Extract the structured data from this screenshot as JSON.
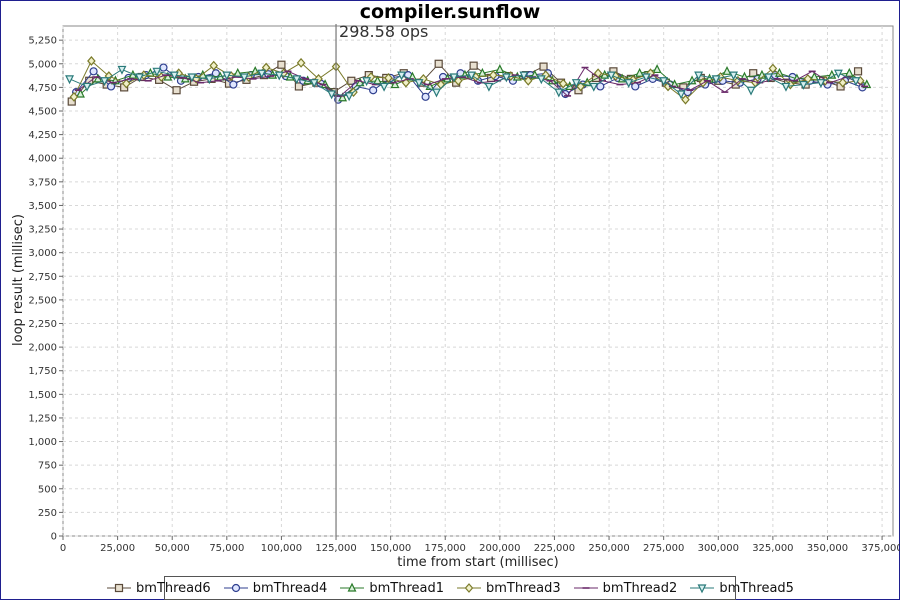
{
  "chart_data": {
    "type": "line",
    "title": "compiler.sunflow",
    "xlabel": "time from start (millisec)",
    "ylabel": "loop result (millisec)",
    "xlim": [
      0,
      380000
    ],
    "ylim": [
      0,
      5400
    ],
    "x_ticks": [
      0,
      25000,
      50000,
      75000,
      100000,
      125000,
      150000,
      175000,
      200000,
      225000,
      250000,
      275000,
      300000,
      325000,
      350000,
      375000
    ],
    "x_tick_labels": [
      "0",
      "25,000",
      "50,000",
      "75,000",
      "100,000",
      "125,000",
      "150,000",
      "175,000",
      "200,000",
      "225,000",
      "250,000",
      "275,000",
      "300,000",
      "325,000",
      "350,000",
      "375,000"
    ],
    "y_ticks": [
      0,
      250,
      500,
      750,
      1000,
      1250,
      1500,
      1750,
      2000,
      2250,
      2500,
      2750,
      3000,
      3250,
      3500,
      3750,
      4000,
      4250,
      4500,
      4750,
      5000,
      5250
    ],
    "y_tick_labels": [
      "0",
      "250",
      "500",
      "750",
      "1,000",
      "1,250",
      "1,500",
      "1,750",
      "2,000",
      "2,250",
      "2,500",
      "2,750",
      "3,000",
      "3,250",
      "3,500",
      "3,750",
      "4,000",
      "4,250",
      "4,500",
      "4,750",
      "5,000",
      "5,250"
    ],
    "grid": true,
    "legend_position": "bottom",
    "annotation": {
      "x": 125000,
      "label": "298.58 ops"
    },
    "series": [
      {
        "name": "bmThread6",
        "marker": "square",
        "color": "#5a4a3a",
        "fill": "#e8e0d0",
        "x": [
          4000,
          12000,
          20000,
          28000,
          36000,
          44000,
          52000,
          60000,
          68000,
          76000,
          84000,
          92000,
          100000,
          108000,
          116000,
          124000,
          132000,
          140000,
          148000,
          156000,
          164000,
          172000,
          180000,
          188000,
          196000,
          204000,
          212000,
          220000,
          228000,
          236000,
          244000,
          252000,
          260000,
          268000,
          276000,
          284000,
          292000,
          300000,
          308000,
          316000,
          324000,
          332000,
          340000,
          348000,
          356000,
          364000
        ],
        "y": [
          4600,
          4820,
          4780,
          4750,
          4860,
          4830,
          4720,
          4810,
          4840,
          4790,
          4830,
          4880,
          4990,
          4760,
          4800,
          4700,
          4820,
          4880,
          4850,
          4900,
          4800,
          5000,
          4800,
          4980,
          4850,
          4870,
          4880,
          4970,
          4800,
          4720,
          4850,
          4920,
          4840,
          4880,
          4800,
          4750,
          4850,
          4820,
          4780,
          4900,
          4850,
          4800,
          4780,
          4820,
          4760,
          4920
        ]
      },
      {
        "name": "bmThread4",
        "marker": "circle",
        "color": "#2f3f8f",
        "fill": "#dfe6ff",
        "x": [
          6000,
          14000,
          22000,
          30000,
          38000,
          46000,
          54000,
          62000,
          70000,
          78000,
          86000,
          94000,
          102000,
          110000,
          118000,
          126000,
          134000,
          142000,
          150000,
          158000,
          166000,
          174000,
          182000,
          190000,
          198000,
          206000,
          214000,
          222000,
          230000,
          238000,
          246000,
          254000,
          262000,
          270000,
          278000,
          286000,
          294000,
          302000,
          310000,
          318000,
          326000,
          334000,
          342000,
          350000,
          358000,
          366000
        ],
        "y": [
          4700,
          4920,
          4760,
          4850,
          4880,
          4960,
          4820,
          4860,
          4900,
          4780,
          4880,
          4890,
          4870,
          4820,
          4790,
          4620,
          4760,
          4720,
          4850,
          4880,
          4650,
          4860,
          4900,
          4820,
          4870,
          4820,
          4880,
          4900,
          4680,
          4780,
          4760,
          4850,
          4760,
          4840,
          4780,
          4700,
          4780,
          4820,
          4800,
          4840,
          4880,
          4860,
          4820,
          4780,
          4820,
          4750
        ]
      },
      {
        "name": "bmThread1",
        "marker": "triangle-up",
        "color": "#2a7a2a",
        "fill": "#d8f0d8",
        "x": [
          8000,
          16000,
          24000,
          32000,
          40000,
          48000,
          56000,
          64000,
          72000,
          80000,
          88000,
          96000,
          104000,
          112000,
          120000,
          128000,
          136000,
          144000,
          152000,
          160000,
          168000,
          176000,
          184000,
          192000,
          200000,
          208000,
          216000,
          224000,
          232000,
          240000,
          248000,
          256000,
          264000,
          272000,
          280000,
          288000,
          296000,
          304000,
          312000,
          320000,
          328000,
          336000,
          344000,
          352000,
          360000,
          368000
        ],
        "y": [
          4680,
          4840,
          4820,
          4880,
          4900,
          4860,
          4840,
          4880,
          4860,
          4900,
          4920,
          4880,
          4860,
          4820,
          4780,
          4640,
          4800,
          4820,
          4780,
          4860,
          4760,
          4840,
          4880,
          4900,
          4940,
          4860,
          4880,
          4820,
          4760,
          4800,
          4880,
          4840,
          4900,
          4940,
          4780,
          4820,
          4840,
          4920,
          4860,
          4880,
          4900,
          4840,
          4860,
          4880,
          4900,
          4780
        ]
      },
      {
        "name": "bmThread3",
        "marker": "diamond",
        "color": "#7a7a2a",
        "fill": "#f0f0c8",
        "x": [
          5000,
          13000,
          21000,
          29000,
          37000,
          45000,
          53000,
          61000,
          69000,
          77000,
          85000,
          93000,
          101000,
          109000,
          117000,
          125000,
          133000,
          141000,
          149000,
          157000,
          165000,
          173000,
          181000,
          189000,
          197000,
          205000,
          213000,
          221000,
          229000,
          237000,
          245000,
          253000,
          261000,
          269000,
          277000,
          285000,
          293000,
          301000,
          309000,
          317000,
          325000,
          333000,
          341000,
          349000,
          357000,
          365000
        ],
        "y": [
          4650,
          5030,
          4870,
          4790,
          4880,
          4860,
          4900,
          4840,
          4980,
          4870,
          4860,
          4960,
          4900,
          5010,
          4840,
          4970,
          4700,
          4860,
          4850,
          4800,
          4840,
          4780,
          4820,
          4860,
          4880,
          4870,
          4820,
          4880,
          4790,
          4760,
          4900,
          4870,
          4830,
          4900,
          4760,
          4620,
          4800,
          4860,
          4820,
          4800,
          4950,
          4780,
          4840,
          4820,
          4800,
          4820
        ]
      },
      {
        "name": "bmThread2",
        "marker": "square-line",
        "color": "#6a2a6a",
        "fill": "#f0dcf0",
        "x": [
          7000,
          15000,
          23000,
          31000,
          39000,
          47000,
          55000,
          63000,
          71000,
          79000,
          87000,
          95000,
          103000,
          111000,
          119000,
          127000,
          135000,
          143000,
          151000,
          159000,
          167000,
          175000,
          183000,
          191000,
          199000,
          207000,
          215000,
          223000,
          231000,
          239000,
          247000,
          255000,
          263000,
          271000,
          279000,
          287000,
          295000,
          303000,
          311000,
          319000,
          327000,
          335000,
          343000,
          351000,
          359000,
          367000
        ],
        "y": [
          4720,
          4860,
          4800,
          4840,
          4820,
          4880,
          4850,
          4800,
          4820,
          4860,
          4840,
          4870,
          4920,
          4840,
          4780,
          4660,
          4820,
          4780,
          4800,
          4840,
          4780,
          4840,
          4860,
          4800,
          4820,
          4880,
          4860,
          4820,
          4660,
          4960,
          4820,
          4780,
          4800,
          4880,
          4760,
          4720,
          4820,
          4700,
          4840,
          4800,
          4840,
          4820,
          4920,
          4800,
          4860,
          4760
        ]
      },
      {
        "name": "bmThread5",
        "marker": "triangle-down",
        "color": "#2a7a7a",
        "fill": "#d8f0f0",
        "x": [
          3000,
          11000,
          19000,
          27000,
          35000,
          43000,
          51000,
          59000,
          67000,
          75000,
          83000,
          91000,
          99000,
          107000,
          115000,
          123000,
          131000,
          139000,
          147000,
          155000,
          163000,
          171000,
          179000,
          187000,
          195000,
          203000,
          211000,
          219000,
          227000,
          235000,
          243000,
          251000,
          259000,
          267000,
          275000,
          283000,
          291000,
          299000,
          307000,
          315000,
          323000,
          331000,
          339000,
          347000,
          355000,
          363000
        ],
        "y": [
          4840,
          4760,
          4820,
          4940,
          4860,
          4920,
          4880,
          4860,
          4840,
          4880,
          4860,
          4900,
          4880,
          4840,
          4800,
          4680,
          4660,
          4820,
          4760,
          4880,
          4800,
          4700,
          4860,
          4880,
          4760,
          4860,
          4880,
          4840,
          4700,
          4800,
          4760,
          4880,
          4800,
          4860,
          4820,
          4680,
          4880,
          4840,
          4880,
          4720,
          4860,
          4760,
          4780,
          4800,
          4900,
          4820
        ]
      }
    ]
  }
}
